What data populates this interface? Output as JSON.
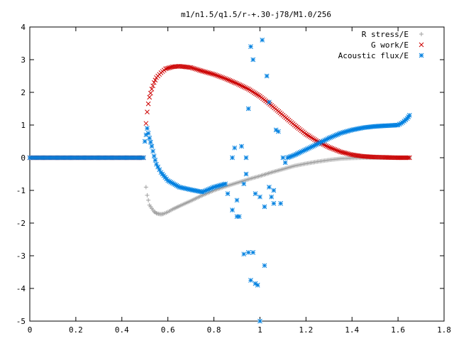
{
  "chart_data": {
    "type": "scatter",
    "title": "m1/n1.5/q1.5/r-+.30-j78/M1.0/256",
    "xlabel": "",
    "ylabel": "",
    "xlim": [
      0,
      1.8
    ],
    "ylim": [
      -5,
      4
    ],
    "x_ticks": [
      "0",
      "0.2",
      "0.4",
      "0.6",
      "0.8",
      "1",
      "1.2",
      "1.4",
      "1.6",
      "1.8"
    ],
    "y_ticks": [
      "4",
      "3",
      "2",
      "1",
      "0",
      "-1",
      "-2",
      "-3",
      "-4",
      "-5"
    ],
    "grid": false,
    "legend_position": "top-right",
    "series": [
      {
        "name": "R stress/E",
        "marker": "+",
        "color": "#a0a0a0",
        "x": [
          0.505,
          0.51,
          0.515,
          0.52,
          0.53,
          0.54,
          0.55,
          0.56,
          0.57,
          0.58,
          0.6,
          0.62,
          0.65,
          0.7,
          0.75,
          0.8,
          0.85,
          0.9,
          0.95,
          1.0,
          1.05,
          1.1,
          1.15,
          1.2,
          1.25,
          1.3,
          1.35,
          1.4,
          1.45,
          1.5,
          1.55,
          1.6,
          1.65
        ],
        "y": [
          -0.9,
          -1.15,
          -1.3,
          -1.45,
          -1.55,
          -1.65,
          -1.7,
          -1.72,
          -1.73,
          -1.72,
          -1.66,
          -1.58,
          -1.48,
          -1.32,
          -1.15,
          -1.0,
          -0.88,
          -0.77,
          -0.66,
          -0.56,
          -0.45,
          -0.35,
          -0.25,
          -0.18,
          -0.12,
          -0.07,
          -0.03,
          -0.01,
          0.0,
          0.0,
          0.0,
          0.0,
          0.0
        ]
      },
      {
        "name": "G work/E",
        "marker": "x",
        "color": "#cc0000",
        "x": [
          0.505,
          0.51,
          0.515,
          0.52,
          0.53,
          0.54,
          0.55,
          0.57,
          0.59,
          0.62,
          0.65,
          0.7,
          0.75,
          0.8,
          0.85,
          0.9,
          0.95,
          1.0,
          1.05,
          1.1,
          1.15,
          1.2,
          1.25,
          1.3,
          1.35,
          1.4,
          1.45,
          1.5,
          1.55,
          1.6,
          1.65
        ],
        "y": [
          1.05,
          1.4,
          1.65,
          1.85,
          2.1,
          2.3,
          2.45,
          2.6,
          2.72,
          2.78,
          2.8,
          2.76,
          2.65,
          2.55,
          2.42,
          2.27,
          2.1,
          1.88,
          1.6,
          1.3,
          1.0,
          0.72,
          0.5,
          0.32,
          0.18,
          0.09,
          0.04,
          0.02,
          0.01,
          0.0,
          0.0
        ]
      },
      {
        "name": "Acoustic flux/E",
        "marker": "*",
        "color": "#0080e0",
        "x": [
          0.5,
          0.51,
          0.52,
          0.53,
          0.54,
          0.55,
          0.57,
          0.6,
          0.65,
          0.7,
          0.75,
          0.8,
          0.85,
          0.88,
          0.9,
          0.91,
          0.92,
          0.93,
          0.94,
          0.95,
          0.96,
          0.97,
          0.98,
          0.99,
          1.0,
          1.01,
          1.02,
          1.03,
          1.04,
          1.05,
          1.06,
          1.07,
          1.08,
          1.09,
          1.1,
          1.11,
          1.12,
          1.15,
          1.2,
          1.25,
          1.3,
          1.35,
          1.4,
          1.45,
          1.5,
          1.55,
          1.6,
          1.62,
          1.64,
          1.65
        ],
        "y": [
          0.5,
          0.9,
          0.6,
          0.35,
          0.05,
          -0.2,
          -0.45,
          -0.7,
          -0.9,
          -0.98,
          -1.05,
          -0.9,
          -0.8,
          0.0,
          -1.3,
          -1.8,
          0.35,
          -0.8,
          -0.5,
          1.5,
          3.4,
          3.0,
          -1.1,
          -3.9,
          -5.0,
          3.6,
          -1.5,
          2.5,
          1.7,
          -1.2,
          -1.4,
          0.85,
          0.8,
          -1.4,
          0.0,
          -0.15,
          0.0,
          0.08,
          0.25,
          0.42,
          0.6,
          0.75,
          0.85,
          0.92,
          0.96,
          0.98,
          1.0,
          1.08,
          1.2,
          1.3
        ]
      }
    ],
    "scatter_extra": {
      "x": [
        0.86,
        0.88,
        0.89,
        0.9,
        0.93,
        0.94,
        0.95,
        0.96,
        0.97,
        0.98,
        1.0,
        1.02,
        1.04,
        1.06
      ],
      "y": [
        -1.1,
        -1.6,
        0.3,
        -1.8,
        -2.95,
        0.0,
        -2.9,
        -3.75,
        -2.9,
        -3.85,
        -1.2,
        -3.3,
        -0.9,
        -1.0
      ]
    }
  }
}
